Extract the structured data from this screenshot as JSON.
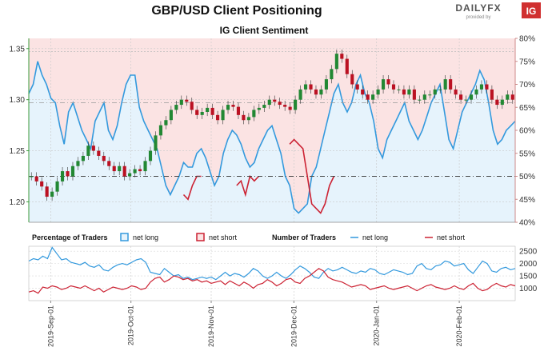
{
  "header": {
    "title": "GBP/USD Client Positioning",
    "brand": "DAILYFX",
    "brand_sub": "provided by",
    "brand_badge": "IG"
  },
  "chart_data": [
    {
      "type": "line",
      "title": "IG Client Sentiment",
      "price_axis": {
        "ticks": [
          "1.20",
          "1.25",
          "1.30",
          "1.35"
        ],
        "ylim": [
          1.18,
          1.36
        ]
      },
      "percent_axis": {
        "ticks": [
          "40%",
          "45%",
          "50%",
          "55%",
          "60%",
          "65%",
          "70%",
          "75%",
          "80%"
        ],
        "ylim": [
          40,
          80
        ]
      },
      "x_labels": [
        "2019-Sep-01",
        "2019-Oct-01",
        "2019-Nov-01",
        "2019-Dec-01",
        "2020-Jan-01",
        "2020-Feb-01"
      ],
      "reference_line_percent": 50,
      "colors": {
        "net_long": "#3399dd",
        "net_short": "#cc2233",
        "up_candle": "#228833",
        "down_candle": "#bb1122"
      },
      "series": [
        {
          "name": "net long",
          "percent": [
            68,
            70,
            75,
            72,
            70,
            67,
            66,
            61,
            57,
            64,
            66,
            63,
            60,
            58,
            56,
            62,
            64,
            66,
            60,
            58,
            61,
            66,
            70,
            72,
            72,
            65,
            62,
            60,
            58,
            56,
            52,
            48,
            46,
            48,
            50,
            53,
            52,
            52,
            55,
            56,
            54,
            51,
            48,
            50,
            55,
            58,
            60,
            59,
            57,
            54,
            52,
            53,
            56,
            58,
            60,
            61,
            58,
            55,
            50,
            48,
            43,
            42,
            43,
            44,
            50,
            52,
            56,
            60,
            64,
            68,
            70,
            66,
            64,
            66,
            70,
            72,
            68,
            66,
            62,
            56,
            54,
            58,
            60,
            62,
            64,
            66,
            62,
            60,
            58,
            60,
            63,
            66,
            68,
            70,
            64,
            58,
            56,
            60,
            64,
            66,
            68,
            70,
            73,
            71,
            66,
            60,
            57,
            58,
            60,
            61,
            62
          ]
        },
        {
          "name": "net short",
          "percent_below_50": [
            46,
            45,
            48,
            50,
            50,
            48,
            49,
            46,
            50,
            49,
            50,
            57,
            58,
            57,
            56,
            50,
            44,
            43,
            42,
            44,
            48,
            50
          ]
        }
      ],
      "price_candles": [
        1.225,
        1.22,
        1.215,
        1.205,
        1.21,
        1.22,
        1.23,
        1.225,
        1.235,
        1.24,
        1.245,
        1.255,
        1.25,
        1.245,
        1.24,
        1.235,
        1.23,
        1.235,
        1.225,
        1.228,
        1.232,
        1.23,
        1.24,
        1.25,
        1.265,
        1.275,
        1.28,
        1.29,
        1.295,
        1.3,
        1.298,
        1.29,
        1.285,
        1.288,
        1.292,
        1.285,
        1.28,
        1.29,
        1.295,
        1.293,
        1.285,
        1.28,
        1.283,
        1.29,
        1.292,
        1.295,
        1.3,
        1.298,
        1.295,
        1.293,
        1.29,
        1.3,
        1.31,
        1.315,
        1.31,
        1.305,
        1.31,
        1.32,
        1.33,
        1.345,
        1.34,
        1.325,
        1.315,
        1.31,
        1.305,
        1.3,
        1.305,
        1.31,
        1.32,
        1.315,
        1.31,
        1.31,
        1.305,
        1.31,
        1.3,
        1.3,
        1.305,
        1.305,
        1.31,
        1.31,
        1.32,
        1.31,
        1.305,
        1.3,
        1.3,
        1.305,
        1.31,
        1.315,
        1.31,
        1.3,
        1.295,
        1.3,
        1.305,
        1.3
      ]
    },
    {
      "type": "line",
      "title": "Number of Traders",
      "y_ticks": [
        "1000",
        "1500",
        "2000",
        "2500"
      ],
      "ylim": [
        500,
        2700
      ],
      "series": [
        {
          "name": "net long",
          "values": [
            2100,
            2200,
            2150,
            2300,
            2200,
            2650,
            2400,
            2150,
            2200,
            2050,
            2000,
            1950,
            2050,
            1900,
            1850,
            1950,
            1750,
            1700,
            1850,
            1950,
            2000,
            1950,
            2050,
            2150,
            2200,
            2050,
            1650,
            1600,
            1550,
            1800,
            1650,
            1500,
            1550,
            1400,
            1450,
            1350,
            1400,
            1450,
            1400,
            1450,
            1350,
            1500,
            1650,
            1500,
            1600,
            1550,
            1450,
            1600,
            1800,
            1700,
            1500,
            1400,
            1500,
            1650,
            1500,
            1400,
            1550,
            1750,
            1900,
            1800,
            1650,
            1450,
            1400,
            1650,
            1800,
            1700,
            1750,
            1850,
            1750,
            1650,
            1600,
            1700,
            1650,
            1800,
            1750,
            1600,
            1550,
            1650,
            1750,
            1700,
            1650,
            1550,
            1600,
            1900,
            2000,
            1800,
            1750,
            1900,
            1950,
            2100,
            2050,
            1900,
            1950,
            2000,
            1750,
            1600,
            1850,
            2100,
            2000,
            1700,
            1650,
            1800,
            1850,
            1750,
            1800
          ]
        },
        {
          "name": "net short",
          "values": [
            850,
            900,
            800,
            1050,
            1000,
            1100,
            1050,
            950,
            1000,
            1100,
            1050,
            1000,
            1100,
            1000,
            900,
            1000,
            850,
            950,
            1050,
            1000,
            950,
            1000,
            1100,
            1050,
            950,
            1000,
            1250,
            1400,
            1450,
            1250,
            1350,
            1500,
            1450,
            1350,
            1400,
            1300,
            1350,
            1250,
            1300,
            1200,
            1250,
            1300,
            1150,
            1300,
            1200,
            1100,
            1250,
            1150,
            1000,
            1150,
            1200,
            1350,
            1250,
            1100,
            1200,
            1350,
            1400,
            1250,
            1200,
            1400,
            1500,
            1650,
            1800,
            1700,
            1450,
            1350,
            1300,
            1250,
            1150,
            1050,
            1100,
            1150,
            1100,
            950,
            1000,
            1050,
            1100,
            1000,
            950,
            1000,
            1050,
            1100,
            1000,
            900,
            1000,
            1100,
            1150,
            1050,
            1000,
            950,
            1000,
            1100,
            1000,
            950,
            1100,
            1200,
            1000,
            900,
            950,
            1100,
            1200,
            1100,
            1050,
            1150,
            1100
          ]
        }
      ]
    }
  ],
  "legend": {
    "pct_title": "Percentage of Traders",
    "num_title": "Number of Traders",
    "net_long": "net long",
    "net_short": "net short"
  }
}
